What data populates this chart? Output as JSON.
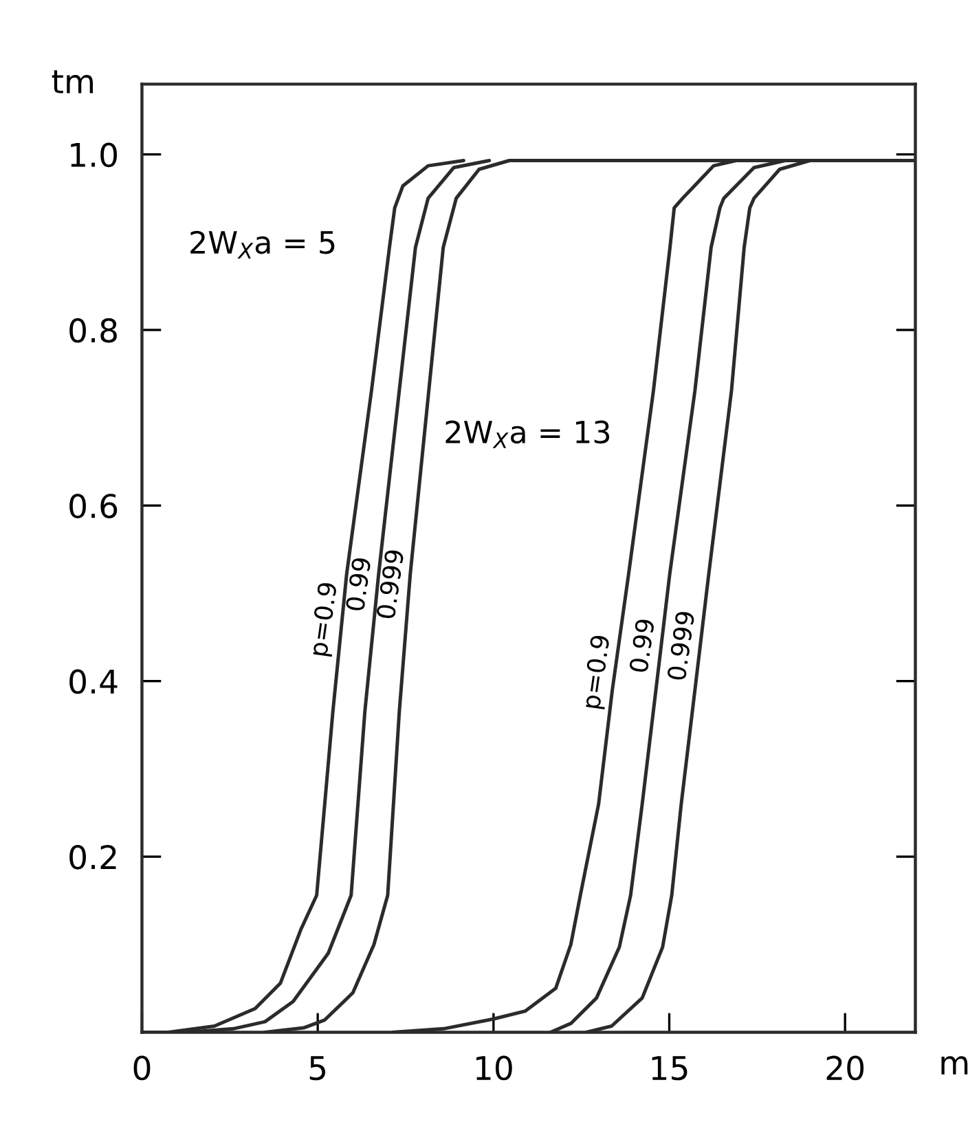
{
  "chart_data": {
    "type": "line",
    "xlabel": "m",
    "ylabel": "tm",
    "xlim": [
      0,
      22
    ],
    "ylim": [
      0,
      1.08
    ],
    "xticks": [
      0,
      5,
      10,
      15,
      20
    ],
    "yticks": [
      {
        "value": 0.2,
        "label": "0.2"
      },
      {
        "value": 0.4,
        "label": "0.4"
      },
      {
        "value": 0.6,
        "label": "0.6"
      },
      {
        "value": 0.8,
        "label": "0.8"
      },
      {
        "value": 1.0,
        "label": "1.0"
      }
    ],
    "grid": false,
    "marker": "none",
    "line_style": "solid",
    "series": [
      {
        "color": "#2b2b2b",
        "x": [
          0,
          0.75,
          2.06,
          3.22,
          3.94,
          4.52,
          4.97,
          5.43,
          5.82,
          6.53,
          7.04,
          7.19,
          7.42,
          8.14,
          9.15
        ],
        "values": [
          0,
          0,
          0.007,
          0.027,
          0.056,
          0.117,
          0.156,
          0.365,
          0.521,
          0.731,
          0.894,
          0.939,
          0.964,
          0.987,
          0.993
        ]
      },
      {
        "color": "#2b2b2b",
        "x": [
          1.3,
          2.6,
          3.5,
          4.3,
          5.3,
          5.95,
          6.34,
          6.73,
          7.32,
          7.78,
          8.14,
          8.87,
          9.88
        ],
        "values": [
          0,
          0.004,
          0.012,
          0.035,
          0.09,
          0.156,
          0.365,
          0.521,
          0.731,
          0.894,
          0.95,
          0.985,
          0.993
        ]
      },
      {
        "color": "#2b2b2b",
        "x": [
          3.5,
          4.6,
          5.2,
          6.0,
          6.6,
          6.99,
          7.32,
          7.63,
          8.16,
          8.57,
          8.94,
          9.59,
          10.45,
          22
        ],
        "values": [
          0,
          0.005,
          0.014,
          0.045,
          0.1,
          0.156,
          0.365,
          0.521,
          0.731,
          0.894,
          0.95,
          0.983,
          0.993,
          0.993
        ]
      },
      {
        "color": "#2b2b2b",
        "x": [
          7.13,
          8.58,
          9.99,
          10.9,
          11.77,
          12.2,
          12.47,
          12.99,
          13.38,
          13.84,
          14.55,
          15.02,
          15.14,
          15.38,
          16.26,
          16.9
        ],
        "values": [
          0,
          0.004,
          0.015,
          0.024,
          0.05,
          0.1,
          0.156,
          0.26,
          0.39,
          0.521,
          0.731,
          0.894,
          0.939,
          0.95,
          0.987,
          0.993
        ]
      },
      {
        "color": "#2b2b2b",
        "x": [
          11.62,
          12.2,
          12.93,
          13.58,
          13.9,
          14.23,
          14.62,
          15.01,
          15.73,
          16.19,
          16.44,
          16.55,
          17.41,
          18.3
        ],
        "values": [
          0,
          0.01,
          0.039,
          0.097,
          0.156,
          0.26,
          0.39,
          0.521,
          0.731,
          0.894,
          0.939,
          0.95,
          0.985,
          0.993
        ]
      },
      {
        "color": "#2b2b2b",
        "x": [
          12.64,
          13.36,
          14.23,
          14.81,
          15.07,
          15.34,
          15.73,
          16.12,
          16.77,
          17.13,
          17.29,
          17.41,
          18.14,
          19.0
        ],
        "values": [
          0,
          0.007,
          0.039,
          0.097,
          0.156,
          0.26,
          0.39,
          0.521,
          0.731,
          0.894,
          0.939,
          0.95,
          0.983,
          0.993
        ]
      }
    ],
    "annotations": [
      "2W$_{X}$a = 5",
      "2W$_{X}$a = 13",
      "p=0.9",
      "0.99",
      "0.999",
      "p=0.9",
      "0.99",
      "0.999"
    ]
  }
}
